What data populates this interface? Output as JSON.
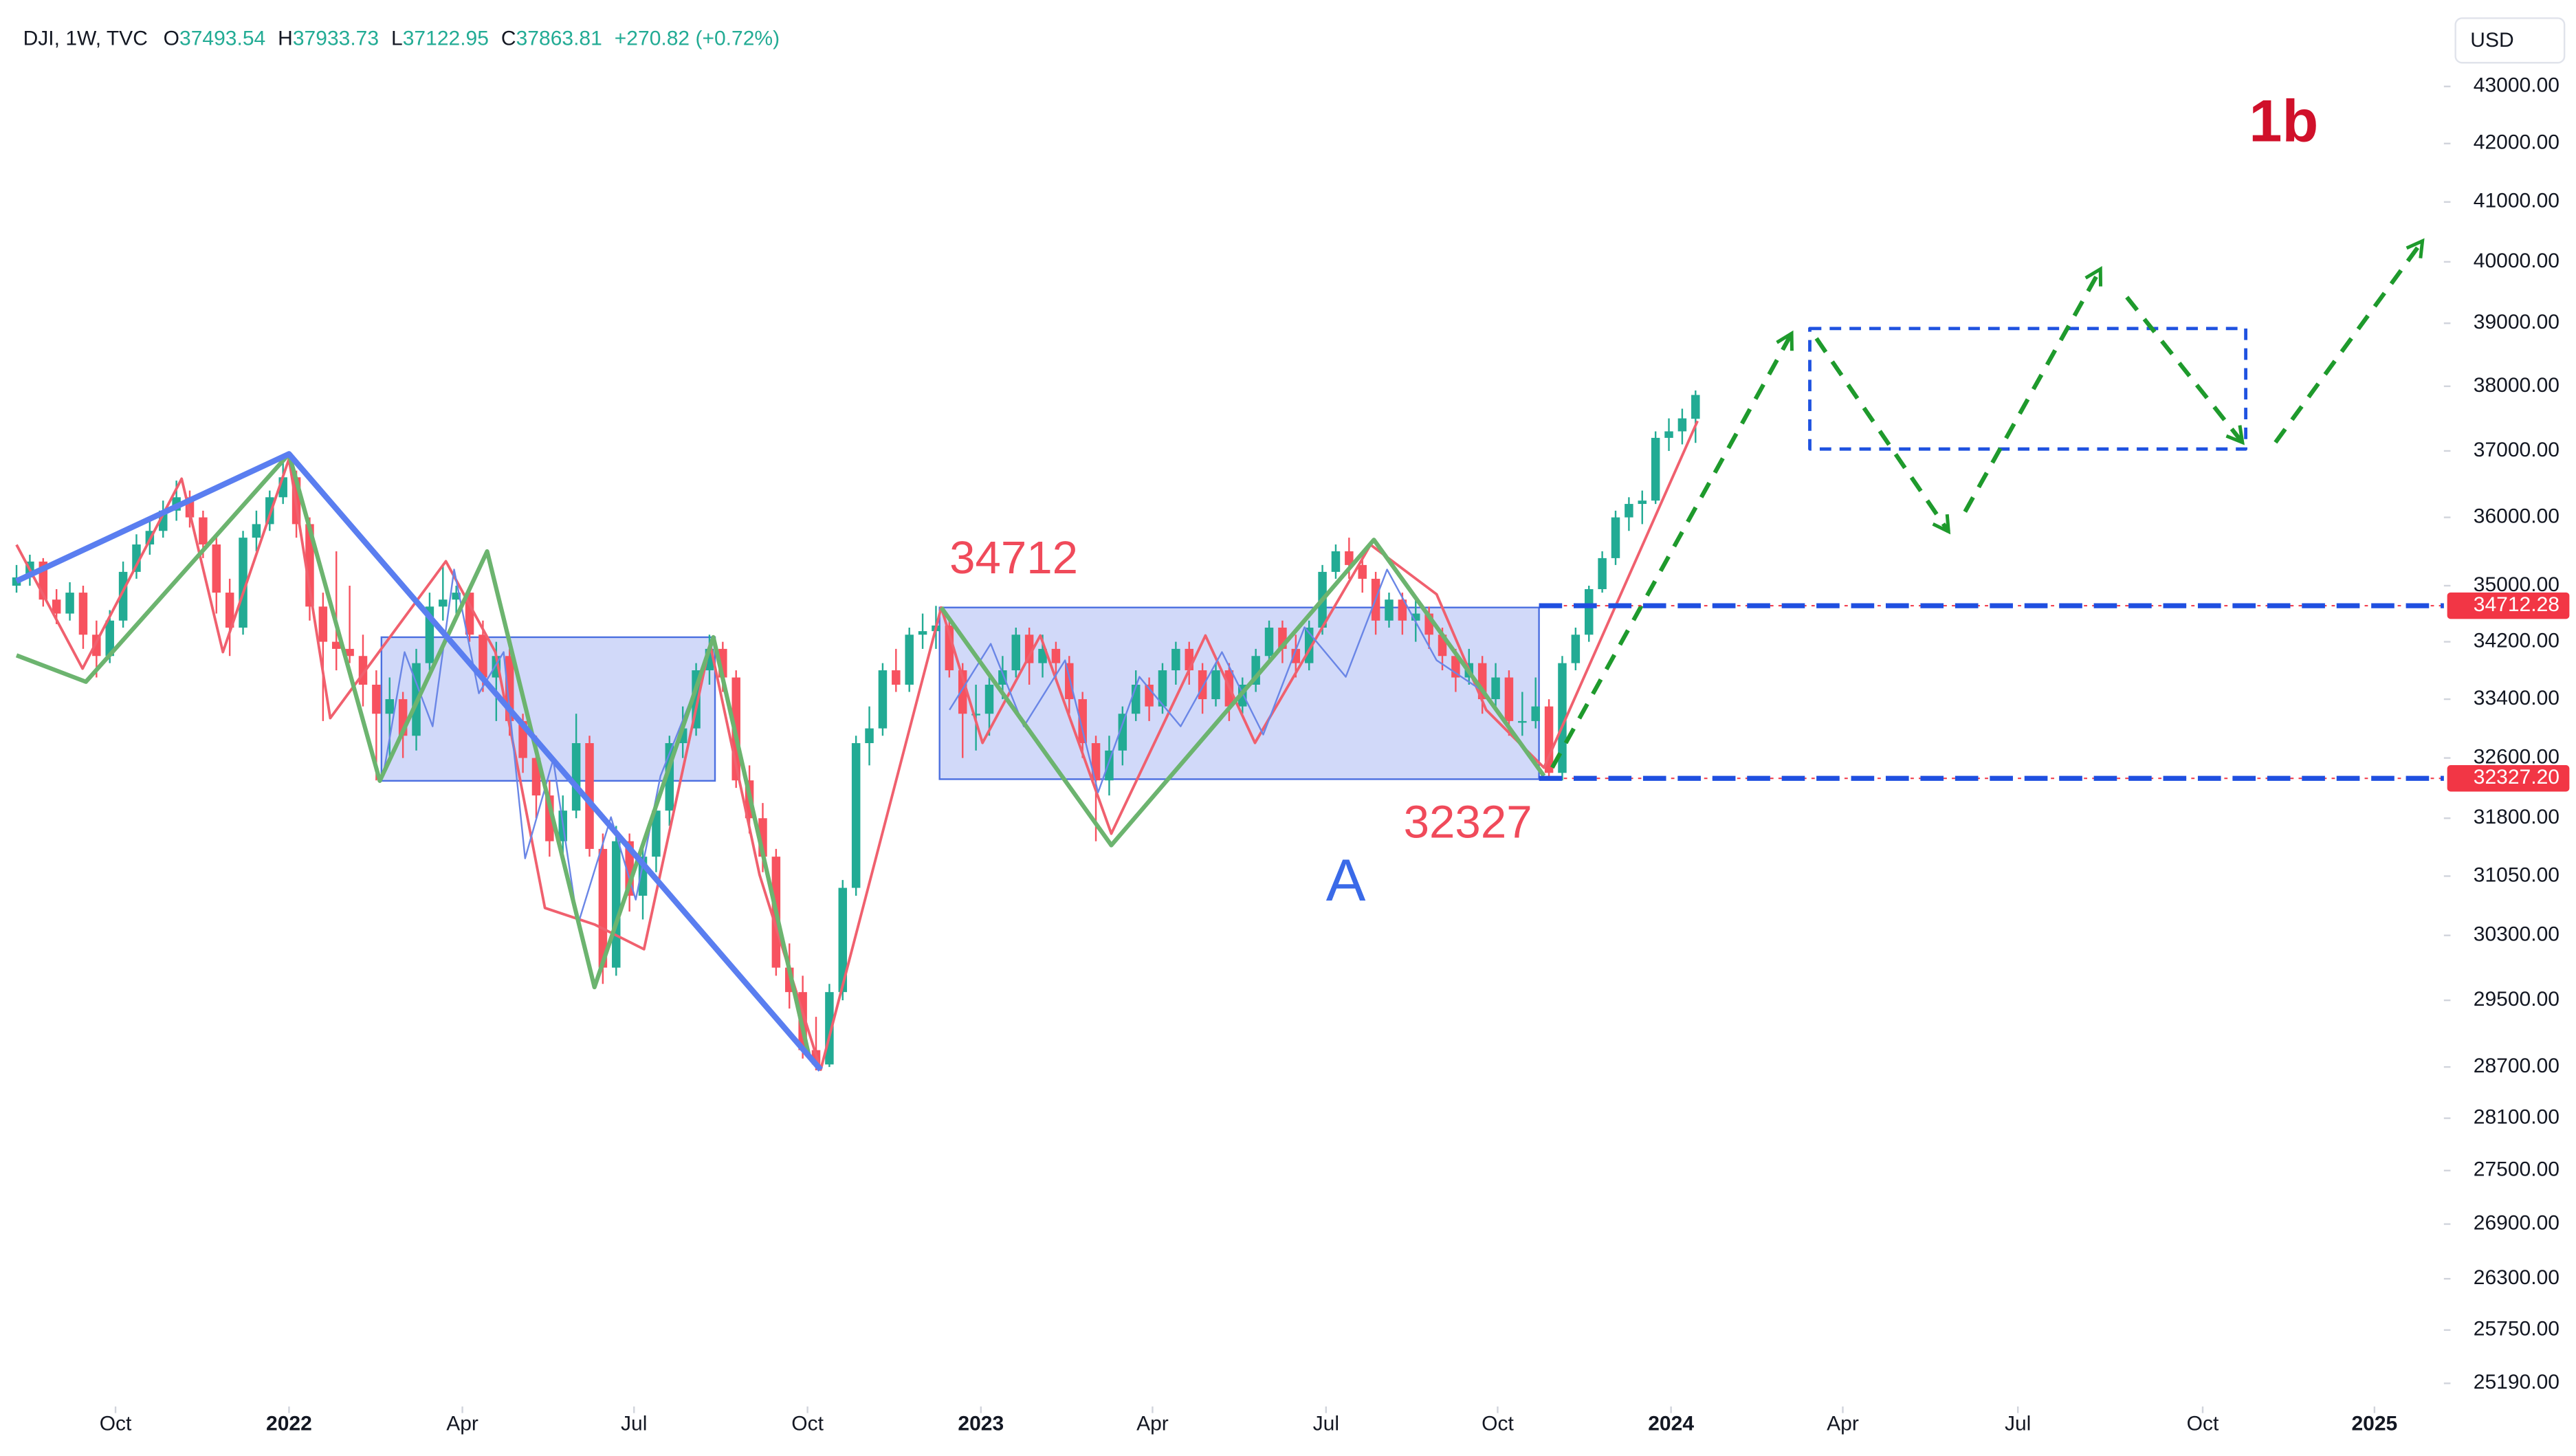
{
  "header": {
    "symbol": "DJI, 1W, TVC",
    "legend": [
      {
        "key": "O",
        "value": "37493.54"
      },
      {
        "key": "H",
        "value": "37933.73"
      },
      {
        "key": "L",
        "value": "37122.95"
      },
      {
        "key": "C",
        "value": "37863.81"
      }
    ],
    "change": "+270.82 (+0.72%)",
    "currency": "USD"
  },
  "chart_data": {
    "type": "candlestick",
    "log_scale": true,
    "up_color": "#22ab94",
    "down_color": "#f7525f",
    "ylim": [
      24900,
      44500
    ],
    "yticks": [
      {
        "value": 43000,
        "label": "43000.00"
      },
      {
        "value": 42000,
        "label": "42000.00"
      },
      {
        "value": 41000,
        "label": "41000.00"
      },
      {
        "value": 40000,
        "label": "40000.00"
      },
      {
        "value": 39000,
        "label": "39000.00"
      },
      {
        "value": 38000,
        "label": "38000.00"
      },
      {
        "value": 37000,
        "label": "37000.00"
      },
      {
        "value": 36000,
        "label": "36000.00"
      },
      {
        "value": 35000,
        "label": "35000.00"
      },
      {
        "value": 34200,
        "label": "34200.00"
      },
      {
        "value": 33400,
        "label": "33400.00"
      },
      {
        "value": 32600,
        "label": "32600.00"
      },
      {
        "value": 31800,
        "label": "31800.00"
      },
      {
        "value": 31050,
        "label": "31050.00"
      },
      {
        "value": 30300,
        "label": "30300.00"
      },
      {
        "value": 29500,
        "label": "29500.00"
      },
      {
        "value": 28700,
        "label": "28700.00"
      },
      {
        "value": 28100,
        "label": "28100.00"
      },
      {
        "value": 27500,
        "label": "27500.00"
      },
      {
        "value": 26900,
        "label": "26900.00"
      },
      {
        "value": 26300,
        "label": "26300.00"
      },
      {
        "value": 25750,
        "label": "25750.00"
      },
      {
        "value": 25190,
        "label": "25190.00"
      }
    ],
    "xlim": [
      -1.24,
      182.16
    ],
    "xticks": [
      {
        "value": 7.43,
        "label": "Oct"
      },
      {
        "value": 20.45,
        "label": "2022"
      },
      {
        "value": 33.46,
        "label": "Apr"
      },
      {
        "value": 46.34,
        "label": "Jul"
      },
      {
        "value": 59.36,
        "label": "Oct"
      },
      {
        "value": 72.37,
        "label": "2023"
      },
      {
        "value": 85.25,
        "label": "Apr"
      },
      {
        "value": 98.27,
        "label": "Jul"
      },
      {
        "value": 111.15,
        "label": "Oct"
      },
      {
        "value": 124.16,
        "label": "2024"
      },
      {
        "value": 137.05,
        "label": "Apr"
      },
      {
        "value": 150.19,
        "label": "Jul"
      },
      {
        "value": 164.06,
        "label": "Oct"
      },
      {
        "value": 176.95,
        "label": "2025"
      }
    ],
    "price_lines": [
      34712.28,
      {
        "value": 32327.2,
        "label": "32327.20"
      }
    ],
    "annotations": [
      "34712",
      "32327",
      "A",
      "1b"
    ],
    "candles": [
      [
        35000,
        35300,
        34900,
        35120
      ],
      [
        35120,
        35450,
        35000,
        35350
      ],
      [
        35350,
        35400,
        34700,
        34800
      ],
      [
        34800,
        34950,
        34450,
        34600
      ],
      [
        34600,
        35050,
        34500,
        34900
      ],
      [
        34900,
        35000,
        34100,
        34300
      ],
      [
        34300,
        34500,
        33700,
        34000
      ],
      [
        34000,
        34650,
        33900,
        34500
      ],
      [
        34500,
        35350,
        34400,
        35200
      ],
      [
        35200,
        35750,
        35100,
        35600
      ],
      [
        35600,
        35950,
        35450,
        35800
      ],
      [
        35800,
        36250,
        35700,
        36100
      ],
      [
        36100,
        36550,
        35950,
        36300
      ],
      [
        36300,
        36400,
        35850,
        36000
      ],
      [
        36000,
        36100,
        35400,
        35600
      ],
      [
        35600,
        35700,
        34600,
        34900
      ],
      [
        34900,
        35100,
        34000,
        34400
      ],
      [
        34400,
        35800,
        34300,
        35700
      ],
      [
        35700,
        36100,
        35500,
        35900
      ],
      [
        35900,
        36400,
        35800,
        36300
      ],
      [
        36300,
        36950,
        36200,
        36600
      ],
      [
        36600,
        36700,
        35700,
        35900
      ],
      [
        35900,
        36000,
        34500,
        34700
      ],
      [
        34700,
        34900,
        33100,
        34200
      ],
      [
        34200,
        35500,
        33800,
        34100
      ],
      [
        34100,
        35000,
        33900,
        34000
      ],
      [
        34000,
        34300,
        33300,
        33600
      ],
      [
        33600,
        33800,
        32300,
        33200
      ],
      [
        33200,
        33700,
        32600,
        33400
      ],
      [
        33400,
        33500,
        32600,
        32900
      ],
      [
        32900,
        34100,
        32700,
        33900
      ],
      [
        33900,
        34900,
        33800,
        34700
      ],
      [
        34700,
        35300,
        34500,
        34800
      ],
      [
        34800,
        35000,
        34600,
        34900
      ],
      [
        34900,
        35000,
        34200,
        34300
      ],
      [
        34300,
        34500,
        33500,
        33700
      ],
      [
        33700,
        34200,
        33100,
        34000
      ],
      [
        34000,
        34100,
        32900,
        33100
      ],
      [
        33100,
        33200,
        32400,
        32600
      ],
      [
        32600,
        32900,
        31800,
        32100
      ],
      [
        32100,
        32300,
        31300,
        31500
      ],
      [
        31500,
        32100,
        31200,
        31900
      ],
      [
        31900,
        33200,
        31800,
        32800
      ],
      [
        32800,
        32900,
        31300,
        31400
      ],
      [
        31400,
        31600,
        29700,
        29900
      ],
      [
        29900,
        31700,
        29800,
        31500
      ],
      [
        31500,
        31600,
        30600,
        30800
      ],
      [
        30800,
        31400,
        30500,
        31300
      ],
      [
        31300,
        32000,
        31100,
        31900
      ],
      [
        31900,
        32900,
        31700,
        32800
      ],
      [
        32800,
        33300,
        32600,
        33000
      ],
      [
        33000,
        33900,
        32900,
        33800
      ],
      [
        33800,
        34300,
        33600,
        34100
      ],
      [
        34100,
        34200,
        33500,
        33700
      ],
      [
        33700,
        33800,
        32200,
        32300
      ],
      [
        32300,
        32500,
        31600,
        31800
      ],
      [
        31800,
        32000,
        31100,
        31300
      ],
      [
        31300,
        31400,
        29800,
        29900
      ],
      [
        29900,
        30200,
        29400,
        29600
      ],
      [
        29600,
        29800,
        28800,
        28900
      ],
      [
        28900,
        29300,
        28660,
        28730
      ],
      [
        28730,
        29700,
        28700,
        29600
      ],
      [
        29600,
        31000,
        29500,
        30900
      ],
      [
        30900,
        32900,
        30800,
        32800
      ],
      [
        32800,
        33300,
        32500,
        33000
      ],
      [
        33000,
        33900,
        32900,
        33800
      ],
      [
        33800,
        34100,
        33500,
        33600
      ],
      [
        33600,
        34400,
        33500,
        34300
      ],
      [
        34300,
        34600,
        34100,
        34350
      ],
      [
        34350,
        34710,
        34100,
        34430
      ],
      [
        34430,
        34500,
        33700,
        33800
      ],
      [
        33800,
        33900,
        32600,
        33200
      ],
      [
        33200,
        33600,
        32700,
        33200
      ],
      [
        33200,
        33700,
        32900,
        33600
      ],
      [
        33600,
        34000,
        33400,
        33800
      ],
      [
        33800,
        34400,
        33700,
        34300
      ],
      [
        34300,
        34400,
        33600,
        33900
      ],
      [
        33900,
        34300,
        33700,
        34100
      ],
      [
        34100,
        34200,
        33700,
        33900
      ],
      [
        33900,
        34000,
        33200,
        33400
      ],
      [
        33400,
        33500,
        32600,
        32800
      ],
      [
        32800,
        32900,
        31500,
        32300
      ],
      [
        32300,
        32900,
        32100,
        32700
      ],
      [
        32700,
        33300,
        32500,
        33200
      ],
      [
        33200,
        33800,
        33100,
        33600
      ],
      [
        33600,
        33700,
        33100,
        33300
      ],
      [
        33300,
        33900,
        33200,
        33800
      ],
      [
        33800,
        34200,
        33600,
        34100
      ],
      [
        34100,
        34200,
        33600,
        33800
      ],
      [
        33800,
        33900,
        33200,
        33400
      ],
      [
        33400,
        33900,
        33300,
        33800
      ],
      [
        33800,
        33900,
        33100,
        33300
      ],
      [
        33300,
        33700,
        33200,
        33600
      ],
      [
        33600,
        34100,
        33500,
        34000
      ],
      [
        34000,
        34500,
        33900,
        34400
      ],
      [
        34400,
        34500,
        33900,
        34100
      ],
      [
        34100,
        34300,
        33700,
        33900
      ],
      [
        33900,
        34500,
        33800,
        34400
      ],
      [
        34400,
        35300,
        34300,
        35200
      ],
      [
        35200,
        35600,
        35100,
        35500
      ],
      [
        35500,
        35700,
        35100,
        35300
      ],
      [
        35300,
        35400,
        34900,
        35100
      ],
      [
        35100,
        35200,
        34300,
        34500
      ],
      [
        34500,
        34900,
        34400,
        34800
      ],
      [
        34800,
        34900,
        34300,
        34500
      ],
      [
        34500,
        34800,
        34200,
        34600
      ],
      [
        34600,
        34700,
        34100,
        34300
      ],
      [
        34300,
        34400,
        33800,
        34000
      ],
      [
        34000,
        34100,
        33500,
        33700
      ],
      [
        33700,
        34100,
        33600,
        33900
      ],
      [
        33900,
        34000,
        33200,
        33400
      ],
      [
        33400,
        33900,
        33300,
        33700
      ],
      [
        33700,
        33800,
        32900,
        33100
      ],
      [
        33100,
        33500,
        32900,
        33100
      ],
      [
        33100,
        33700,
        33000,
        33300
      ],
      [
        33300,
        33400,
        32327,
        32400
      ],
      [
        32400,
        34000,
        32300,
        33900
      ],
      [
        33900,
        34400,
        33800,
        34300
      ],
      [
        34300,
        35000,
        34200,
        34950
      ],
      [
        34950,
        35500,
        34900,
        35400
      ],
      [
        35400,
        36100,
        35300,
        36000
      ],
      [
        36000,
        36300,
        35800,
        36200
      ],
      [
        36200,
        36400,
        35900,
        36250
      ],
      [
        36250,
        37300,
        36200,
        37200
      ],
      [
        37200,
        37500,
        37000,
        37300
      ],
      [
        37300,
        37650,
        37100,
        37500
      ],
      [
        37493.54,
        37933.73,
        37122.95,
        37863.81
      ]
    ]
  }
}
